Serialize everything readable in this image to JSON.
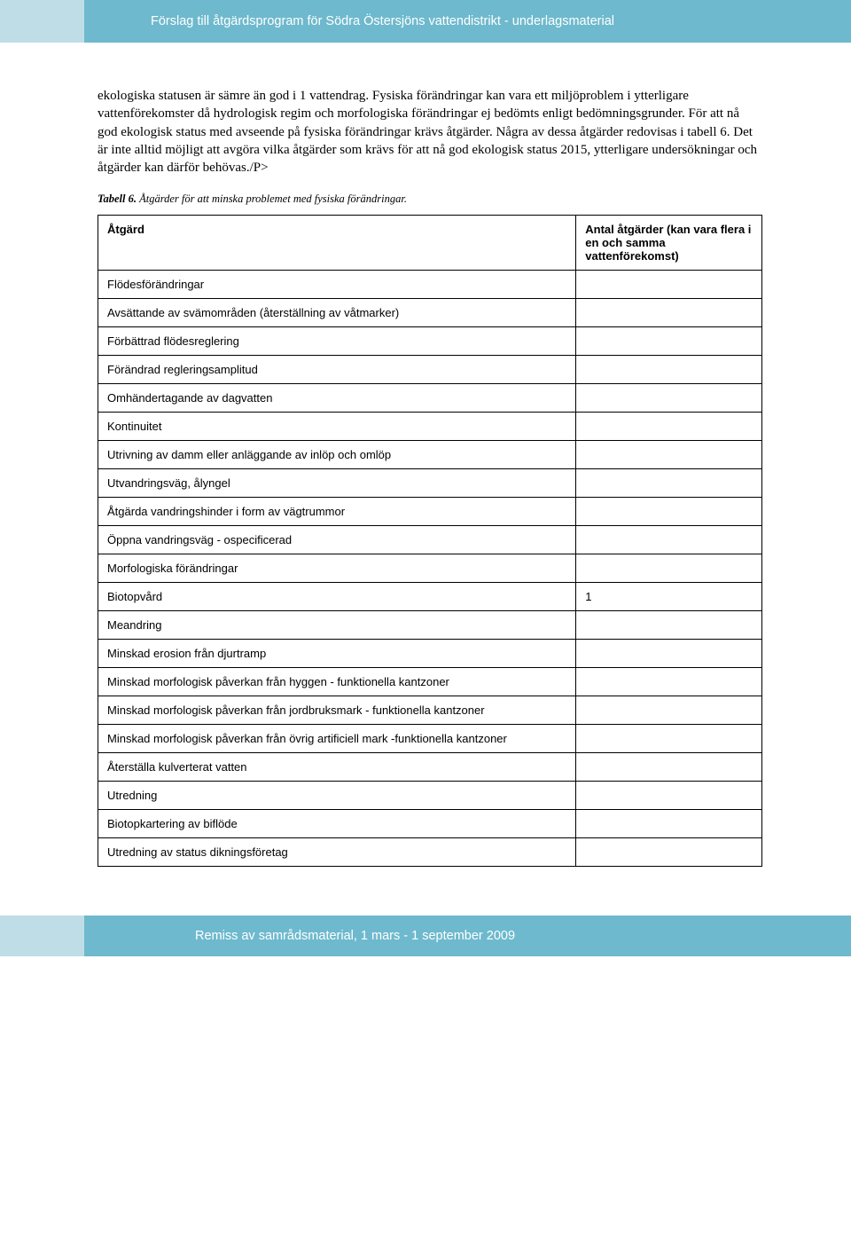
{
  "header": {
    "title": "Förslag till åtgärdsprogram för Södra Östersjöns vattendistrikt - underlagsmaterial",
    "bar_color": "#6eb9cd",
    "tab_color": "#bfdde6",
    "text_color": "#ffffff"
  },
  "body_paragraph": "ekologiska statusen är sämre än god i 1 vattendrag. Fysiska förändringar kan vara ett miljöproblem i ytterligare vattenförekomster då hydrologisk regim och morfologiska förändringar ej bedömts enligt bedömningsgrunder. För att nå god ekologisk status med avseende på fysiska förändringar krävs åtgärder. Några av dessa åtgärder redovisas i tabell 6. Det är inte alltid möjligt att avgöra vilka åtgärder som krävs för att nå god ekologisk status 2015, ytterligare undersökningar och åtgärder kan därför behövas./P>",
  "table_caption": {
    "label": "Tabell 6.",
    "text": " Åtgärder för att minska problemet med fysiska förändringar."
  },
  "table": {
    "header_action": "Åtgärd",
    "header_count": "Antal åtgärder (kan vara flera i en och samma vattenförekomst)",
    "rows": [
      {
        "action": "Flödesförändringar",
        "count": ""
      },
      {
        "action": "Avsättande av svämområden (återställning av våtmarker)",
        "count": ""
      },
      {
        "action": "Förbättrad flödesreglering",
        "count": ""
      },
      {
        "action": "Förändrad regleringsamplitud",
        "count": ""
      },
      {
        "action": "Omhändertagande av dagvatten",
        "count": ""
      },
      {
        "action": "Kontinuitet",
        "count": ""
      },
      {
        "action": "Utrivning av damm eller anläggande av inlöp och omlöp",
        "count": ""
      },
      {
        "action": "Utvandringsväg, ålyngel",
        "count": ""
      },
      {
        "action": "Åtgärda vandringshinder i form av vägtrummor",
        "count": ""
      },
      {
        "action": "Öppna vandringsväg - ospecificerad",
        "count": ""
      },
      {
        "action": "Morfologiska förändringar",
        "count": ""
      },
      {
        "action": "Biotopvård",
        "count": "1"
      },
      {
        "action": "Meandring",
        "count": ""
      },
      {
        "action": "Minskad erosion från djurtramp",
        "count": ""
      },
      {
        "action": "Minskad morfologisk påverkan från hyggen - funktionella kantzoner",
        "count": ""
      },
      {
        "action": "Minskad morfologisk påverkan från jordbruksmark - funktionella kantzoner",
        "count": ""
      },
      {
        "action": "Minskad morfologisk påverkan från övrig artificiell mark -funktionella kantzoner",
        "count": ""
      },
      {
        "action": "Återställa kulverterat vatten",
        "count": ""
      },
      {
        "action": "Utredning",
        "count": ""
      },
      {
        "action": "Biotopkartering av biflöde",
        "count": ""
      },
      {
        "action": "Utredning av status dikningsföretag",
        "count": ""
      }
    ]
  },
  "footer": {
    "text": "Remiss av samrådsmaterial, 1 mars - 1 september 2009",
    "bar_color": "#6eb9cd",
    "tab_color": "#bfdde6",
    "text_color": "#ffffff"
  }
}
